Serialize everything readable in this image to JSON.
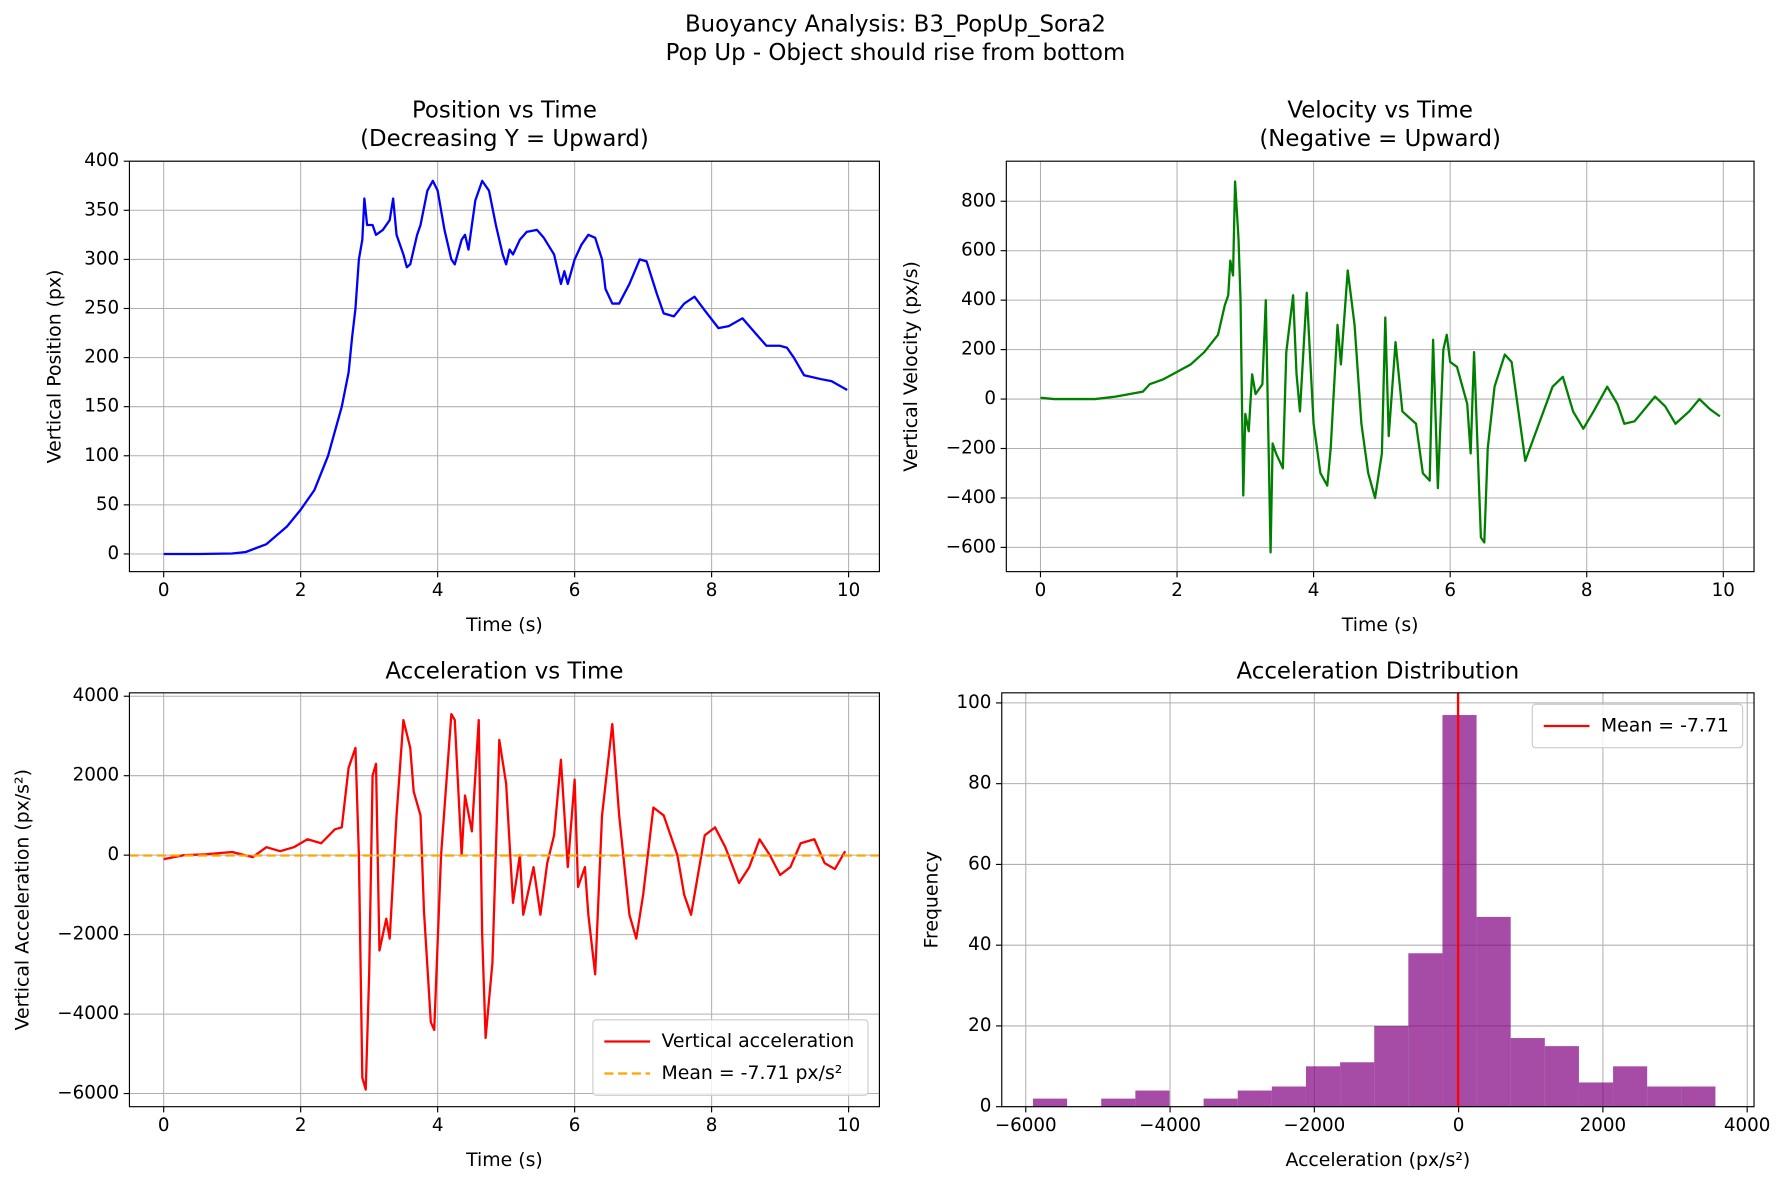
{
  "figure": {
    "title": "Buoyancy Analysis: B3_PopUp_Sora2",
    "subtitle": "Pop Up - Object should rise from bottom"
  },
  "chart_data": [
    {
      "type": "line",
      "title": "Position vs Time",
      "subtitle": "(Decreasing Y = Upward)",
      "x_label": "Time (s)",
      "y_label": "Vertical Position (px)",
      "color": "blue",
      "grid": true,
      "xlim": [
        -0.5,
        10.45
      ],
      "xticks": [
        0,
        2,
        4,
        6,
        8,
        10
      ],
      "ylim": [
        -18,
        400
      ],
      "yticks": [
        0,
        50,
        100,
        150,
        200,
        250,
        300,
        350,
        400
      ],
      "x": [
        0,
        0.5,
        1.0,
        1.2,
        1.5,
        1.8,
        2.0,
        2.2,
        2.4,
        2.6,
        2.7,
        2.75,
        2.8,
        2.85,
        2.9,
        2.93,
        2.97,
        3.05,
        3.1,
        3.2,
        3.3,
        3.35,
        3.4,
        3.5,
        3.55,
        3.6,
        3.7,
        3.75,
        3.85,
        3.93,
        4.0,
        4.1,
        4.2,
        4.25,
        4.35,
        4.4,
        4.45,
        4.55,
        4.65,
        4.75,
        4.85,
        4.95,
        5.0,
        5.05,
        5.1,
        5.2,
        5.3,
        5.45,
        5.55,
        5.7,
        5.75,
        5.8,
        5.85,
        5.9,
        6.0,
        6.1,
        6.2,
        6.3,
        6.4,
        6.45,
        6.55,
        6.65,
        6.8,
        6.95,
        7.05,
        7.2,
        7.3,
        7.45,
        7.6,
        7.75,
        7.9,
        8.1,
        8.25,
        8.45,
        8.6,
        8.8,
        9.0,
        9.1,
        9.2,
        9.35,
        9.6,
        9.75,
        9.98
      ],
      "values": [
        0,
        0,
        0.5,
        2,
        10,
        28,
        45,
        65,
        100,
        150,
        185,
        220,
        250,
        300,
        320,
        362,
        335,
        335,
        325,
        330,
        340,
        362,
        325,
        305,
        292,
        295,
        325,
        335,
        370,
        380,
        370,
        330,
        300,
        295,
        320,
        325,
        310,
        360,
        380,
        370,
        335,
        305,
        295,
        310,
        305,
        320,
        328,
        330,
        322,
        305,
        290,
        275,
        288,
        275,
        300,
        315,
        325,
        322,
        300,
        270,
        255,
        255,
        275,
        300,
        298,
        265,
        245,
        242,
        255,
        262,
        248,
        230,
        232,
        240,
        228,
        212,
        212,
        210,
        200,
        182,
        178,
        176,
        167
      ]
    },
    {
      "type": "line",
      "title": "Velocity vs Time",
      "subtitle": "(Negative = Upward)",
      "x_label": "Time (s)",
      "y_label": "Vertical Velocity (px/s)",
      "color": "green",
      "grid": true,
      "xlim": [
        -0.5,
        10.45
      ],
      "xticks": [
        0,
        2,
        4,
        6,
        8,
        10
      ],
      "ylim": [
        -698,
        962
      ],
      "yticks": [
        {
          "value": -600,
          "label": "−600"
        },
        {
          "value": -400,
          "label": "−400"
        },
        {
          "value": -200,
          "label": "−200"
        },
        0,
        200,
        400,
        600,
        800
      ],
      "x": [
        0,
        0.2,
        0.5,
        0.8,
        1.1,
        1.3,
        1.5,
        1.6,
        1.8,
        2.0,
        2.2,
        2.4,
        2.6,
        2.7,
        2.75,
        2.78,
        2.82,
        2.85,
        2.9,
        2.93,
        2.97,
        3.0,
        3.05,
        3.1,
        3.15,
        3.25,
        3.3,
        3.37,
        3.4,
        3.45,
        3.55,
        3.6,
        3.7,
        3.75,
        3.8,
        3.9,
        4.0,
        4.1,
        4.2,
        4.25,
        4.35,
        4.4,
        4.5,
        4.6,
        4.7,
        4.8,
        4.9,
        5.0,
        5.05,
        5.1,
        5.2,
        5.3,
        5.5,
        5.6,
        5.7,
        5.75,
        5.82,
        5.9,
        5.95,
        6.0,
        6.1,
        6.25,
        6.3,
        6.35,
        6.45,
        6.5,
        6.55,
        6.65,
        6.8,
        6.9,
        7.0,
        7.1,
        7.3,
        7.5,
        7.65,
        7.8,
        7.95,
        8.1,
        8.3,
        8.45,
        8.55,
        8.7,
        8.85,
        9.0,
        9.15,
        9.3,
        9.5,
        9.65,
        9.8,
        9.95
      ],
      "values": [
        5,
        0,
        0,
        0,
        10,
        20,
        30,
        60,
        80,
        110,
        140,
        190,
        260,
        380,
        420,
        560,
        500,
        880,
        650,
        400,
        -390,
        -60,
        -130,
        100,
        20,
        60,
        400,
        -620,
        -180,
        -220,
        -280,
        190,
        420,
        100,
        -50,
        430,
        -100,
        -300,
        -350,
        -200,
        300,
        140,
        520,
        300,
        -100,
        -300,
        -400,
        -220,
        330,
        -150,
        230,
        -50,
        -100,
        -300,
        -330,
        240,
        -360,
        200,
        260,
        150,
        130,
        -20,
        -220,
        190,
        -560,
        -580,
        -200,
        50,
        180,
        150,
        -50,
        -250,
        -100,
        50,
        90,
        -50,
        -120,
        -50,
        50,
        -20,
        -100,
        -90,
        -40,
        10,
        -30,
        -100,
        -50,
        0,
        -40,
        -70
      ]
    },
    {
      "type": "line",
      "title": "Acceleration vs Time",
      "x_label": "Time (s)",
      "y_label": "Vertical Acceleration (px/s²)",
      "grid": true,
      "legend": "lower right",
      "xlim": [
        -0.5,
        10.45
      ],
      "xticks": [
        0,
        2,
        4,
        6,
        8,
        10
      ],
      "ylim": [
        -6331,
        4086
      ],
      "yticks": [
        {
          "value": -6000,
          "label": "−6000"
        },
        {
          "value": -4000,
          "label": "−4000"
        },
        {
          "value": -2000,
          "label": "−2000"
        },
        0,
        2000,
        4000
      ],
      "mean": {
        "value": -7.71,
        "label": "Mean = -7.71 px/s²",
        "color": "orange",
        "dashed": true,
        "axis": "y"
      },
      "x": [
        0,
        0.3,
        0.6,
        1.0,
        1.3,
        1.5,
        1.7,
        1.9,
        2.1,
        2.3,
        2.5,
        2.6,
        2.7,
        2.8,
        2.85,
        2.9,
        2.95,
        3.0,
        3.05,
        3.1,
        3.15,
        3.25,
        3.3,
        3.4,
        3.5,
        3.6,
        3.65,
        3.75,
        3.8,
        3.9,
        3.95,
        4.05,
        4.2,
        4.25,
        4.35,
        4.4,
        4.5,
        4.6,
        4.65,
        4.7,
        4.8,
        4.9,
        5.0,
        5.1,
        5.2,
        5.25,
        5.4,
        5.5,
        5.6,
        5.7,
        5.8,
        5.9,
        6.0,
        6.05,
        6.15,
        6.2,
        6.3,
        6.4,
        6.55,
        6.65,
        6.8,
        6.9,
        7.0,
        7.15,
        7.3,
        7.5,
        7.6,
        7.7,
        7.9,
        8.05,
        8.2,
        8.4,
        8.55,
        8.7,
        8.85,
        9.0,
        9.15,
        9.3,
        9.5,
        9.65,
        9.8,
        9.95
      ],
      "series": [
        {
          "name": "Vertical acceleration",
          "color": "red",
          "values": [
            -100,
            0,
            20,
            80,
            -50,
            200,
            100,
            200,
            400,
            300,
            650,
            700,
            2200,
            2700,
            0,
            -5600,
            -5900,
            -3000,
            2000,
            2300,
            -2400,
            -1600,
            -2100,
            1000,
            3400,
            2700,
            1600,
            1000,
            -1400,
            -4200,
            -4400,
            0,
            3550,
            3400,
            0,
            1500,
            600,
            3400,
            -2000,
            -4600,
            -2700,
            2900,
            1800,
            -1200,
            0,
            -1500,
            -300,
            -1500,
            -200,
            500,
            2400,
            -300,
            1900,
            -800,
            -300,
            -1500,
            -3000,
            1000,
            3300,
            1000,
            -1500,
            -2100,
            -1000,
            1200,
            1000,
            0,
            -1000,
            -1500,
            500,
            700,
            200,
            -700,
            -300,
            400,
            0,
            -500,
            -300,
            300,
            400,
            -200,
            -350,
            100
          ]
        }
      ]
    },
    {
      "type": "histogram",
      "title": "Acceleration Distribution",
      "x_label": "Acceleration (px/s²)",
      "y_label": "Frequency",
      "color": "purple",
      "alpha": 0.7,
      "grid": true,
      "legend": "upper right",
      "xlim": [
        -6333,
        4095
      ],
      "xticks": [
        {
          "value": -6000,
          "label": "−6000"
        },
        {
          "value": -4000,
          "label": "−4000"
        },
        {
          "value": -2000,
          "label": "−2000"
        },
        0,
        2000,
        4000
      ],
      "ylim": [
        0,
        102.5
      ],
      "yticks": [
        0,
        20,
        40,
        60,
        80,
        100
      ],
      "mean": {
        "value": -7.71,
        "label": "Mean = -7.71",
        "color": "red",
        "axis": "x"
      },
      "bins": [
        -5900,
        -5427,
        -4954,
        -4481,
        -4008,
        -3535,
        -3062,
        -2589,
        -2116,
        -1643,
        -1170,
        -697,
        -224,
        249,
        722,
        1195,
        1668,
        2141,
        2614,
        3087,
        3560
      ],
      "values": [
        2,
        0,
        2,
        4,
        0,
        2,
        4,
        5,
        10,
        11,
        20,
        38,
        97,
        47,
        17,
        15,
        6,
        10,
        5,
        5
      ]
    }
  ]
}
